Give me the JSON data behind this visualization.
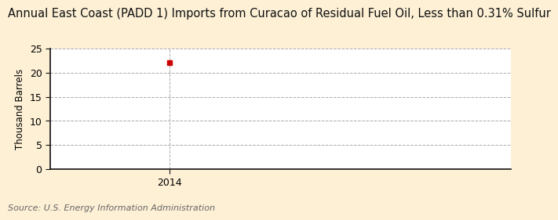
{
  "title": "Annual East Coast (PADD 1) Imports from Curacao of Residual Fuel Oil, Less than 0.31% Sulfur",
  "ylabel": "Thousand Barrels",
  "source_text": "Source: U.S. Energy Information Administration",
  "x_data": [
    2014
  ],
  "y_data": [
    22
  ],
  "data_color": "#cc0000",
  "figure_background_color": "#fdf0d5",
  "plot_background_color": "#ffffff",
  "xlim": [
    2013.3,
    2016.0
  ],
  "ylim": [
    0,
    25
  ],
  "yticks": [
    0,
    5,
    10,
    15,
    20,
    25
  ],
  "xticks": [
    2014
  ],
  "grid_color": "#aaaaaa",
  "grid_style": "--",
  "spine_color": "#111111",
  "title_fontsize": 10.5,
  "label_fontsize": 8.5,
  "tick_fontsize": 9,
  "source_fontsize": 8,
  "marker_size": 5
}
